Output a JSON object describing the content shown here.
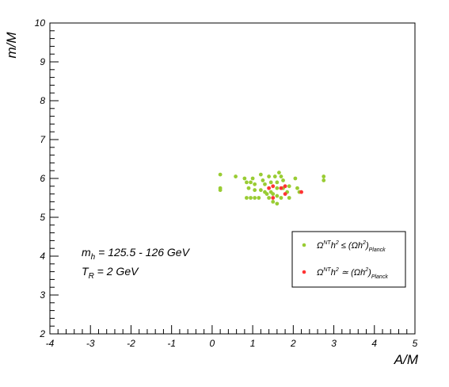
{
  "chart_data": {
    "type": "scatter",
    "xlabel": "A/M",
    "ylabel": "m/M",
    "xlim": [
      -4,
      5
    ],
    "ylim": [
      2,
      10
    ],
    "x_ticks": [
      "-4",
      "-3",
      "-2",
      "-1",
      "0",
      "1",
      "2",
      "3",
      "4",
      "5"
    ],
    "y_ticks": [
      "2",
      "3",
      "4",
      "5",
      "6",
      "7",
      "8",
      "9",
      "10"
    ],
    "grid": false,
    "legend_placement": "right",
    "annotations": [
      {
        "prefix": "m",
        "sub": "h",
        "suffix": " = 125.5 - 126 GeV"
      },
      {
        "prefix": "T",
        "sub": "R",
        "suffix": " = 2 GeV"
      }
    ],
    "series": [
      {
        "color": "#99cc33",
        "legend": {
          "omega": "Ω",
          "sup1": "NT",
          "mid": "h",
          "sup2": "2",
          "rel": " ≤ (Ωh",
          "sup3": "2",
          "close": ")",
          "sub": "Planck"
        },
        "points": [
          [
            0.2,
            6.1
          ],
          [
            0.2,
            5.75
          ],
          [
            0.2,
            5.7
          ],
          [
            0.58,
            6.05
          ],
          [
            0.8,
            6.0
          ],
          [
            0.85,
            5.9
          ],
          [
            0.95,
            5.9
          ],
          [
            1.0,
            6.0
          ],
          [
            1.05,
            5.85
          ],
          [
            1.2,
            6.1
          ],
          [
            1.25,
            5.95
          ],
          [
            0.9,
            5.75
          ],
          [
            1.05,
            5.7
          ],
          [
            1.2,
            5.7
          ],
          [
            1.3,
            5.65
          ],
          [
            0.85,
            5.5
          ],
          [
            0.95,
            5.5
          ],
          [
            1.05,
            5.5
          ],
          [
            1.15,
            5.5
          ],
          [
            1.35,
            5.6
          ],
          [
            1.4,
            6.05
          ],
          [
            1.45,
            5.9
          ],
          [
            1.55,
            6.05
          ],
          [
            1.6,
            5.9
          ],
          [
            1.65,
            6.15
          ],
          [
            1.7,
            6.05
          ],
          [
            1.75,
            5.95
          ],
          [
            1.45,
            5.65
          ],
          [
            1.5,
            5.6
          ],
          [
            1.6,
            5.75
          ],
          [
            1.75,
            5.75
          ],
          [
            1.9,
            5.8
          ],
          [
            1.4,
            5.5
          ],
          [
            1.6,
            5.55
          ],
          [
            1.7,
            5.5
          ],
          [
            1.9,
            5.5
          ],
          [
            1.5,
            5.4
          ],
          [
            1.6,
            5.35
          ],
          [
            2.05,
            6.0
          ],
          [
            2.1,
            5.75
          ],
          [
            2.15,
            5.65
          ],
          [
            2.75,
            6.05
          ],
          [
            2.75,
            5.95
          ],
          [
            1.3,
            5.85
          ],
          [
            1.85,
            5.65
          ]
        ]
      },
      {
        "color": "#ff3333",
        "legend": {
          "omega": "Ω",
          "sup1": "NT",
          "mid": "h",
          "sup2": "2",
          "rel": " ≃ (Ωh",
          "sup3": "2",
          "close": ")",
          "sub": "Planck"
        },
        "points": [
          [
            1.4,
            5.75
          ],
          [
            1.5,
            5.8
          ],
          [
            1.7,
            5.75
          ],
          [
            1.8,
            5.8
          ],
          [
            1.8,
            5.6
          ],
          [
            1.5,
            5.5
          ],
          [
            2.2,
            5.65
          ]
        ]
      }
    ]
  }
}
